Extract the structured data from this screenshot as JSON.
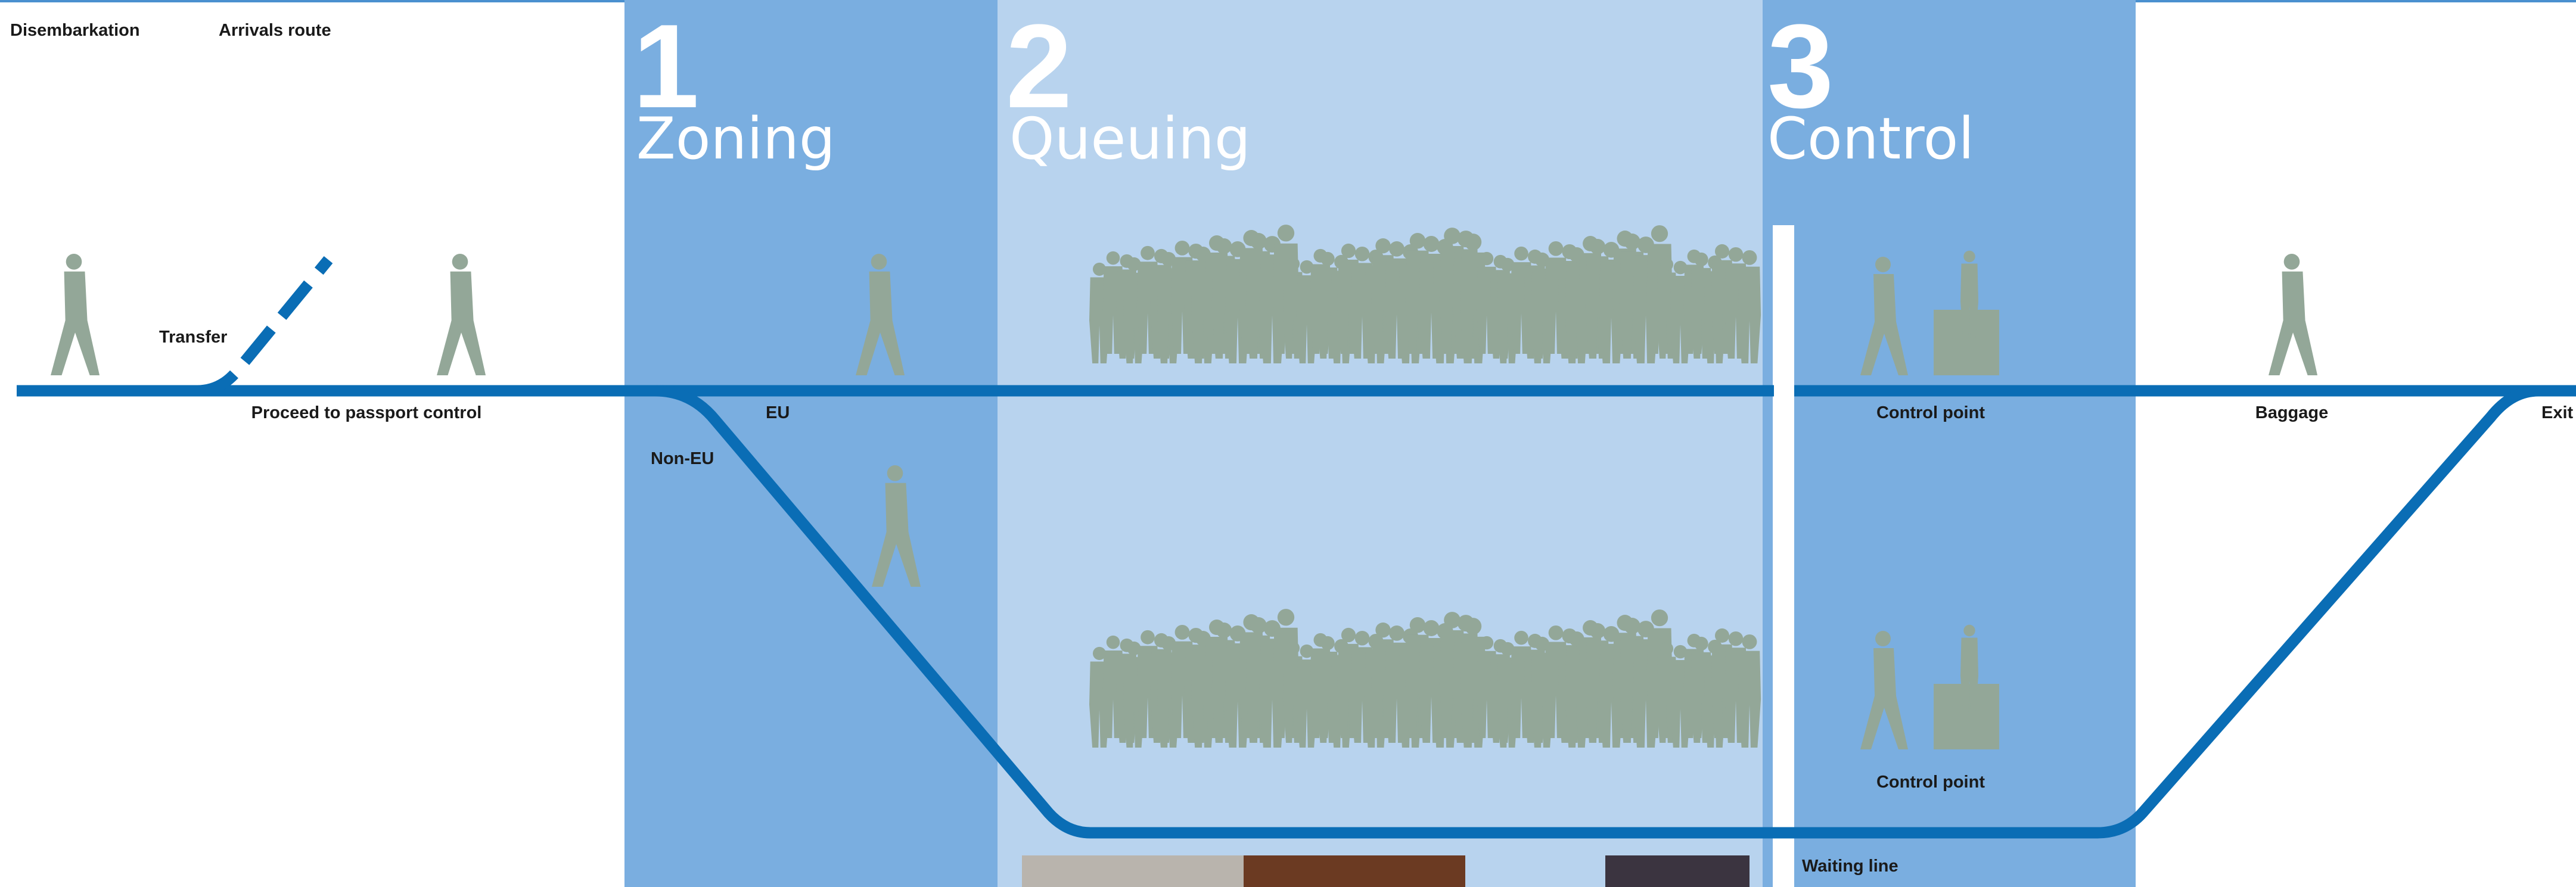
{
  "header": {
    "left": "Disembarkation",
    "right": "Arrivals route"
  },
  "zones": [
    {
      "number": "1",
      "title": "Zoning"
    },
    {
      "number": "2",
      "title": "Queuing"
    },
    {
      "number": "3",
      "title": "Control"
    }
  ],
  "labels": {
    "transfer": "Transfer",
    "proceed": "Proceed to passport control",
    "eu": "EU",
    "non_eu": "Non-EU",
    "control_point_eu": "Control point",
    "control_point_non_eu": "Control point",
    "baggage": "Baggage",
    "exit": "Exit",
    "waiting_line": "Waiting line"
  }
}
